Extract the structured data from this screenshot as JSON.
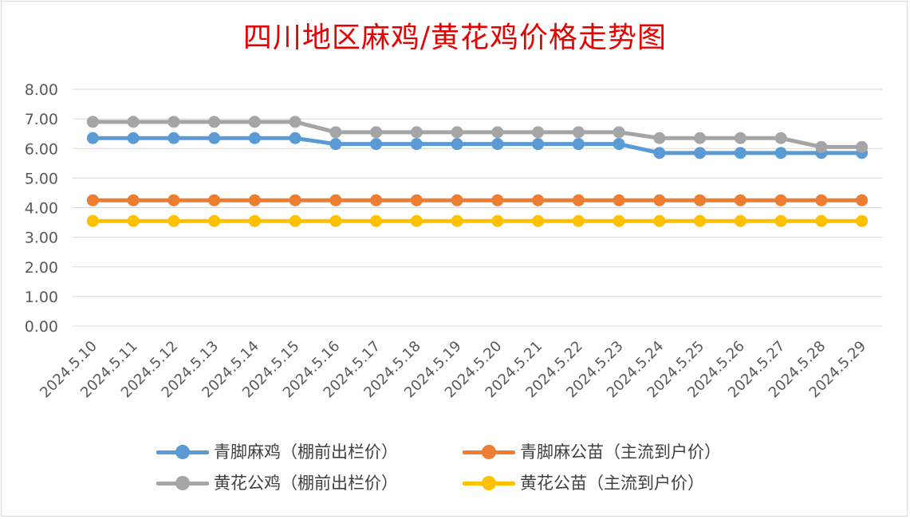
{
  "chart_data": {
    "type": "line",
    "title": "四川地区麻鸡/黄花鸡价格走势图",
    "categories": [
      "2024.5.10",
      "2024.5.11",
      "2024.5.12",
      "2024.5.13",
      "2024.5.14",
      "2024.5.15",
      "2024.5.16",
      "2024.5.17",
      "2024.5.18",
      "2024.5.19",
      "2024.5.20",
      "2024.5.21",
      "2024.5.22",
      "2024.5.23",
      "2024.5.24",
      "2024.5.25",
      "2024.5.26",
      "2024.5.27",
      "2024.5.28",
      "2024.5.29"
    ],
    "ylim": [
      0,
      8
    ],
    "yticks": [
      "0.00",
      "1.00",
      "2.00",
      "3.00",
      "4.00",
      "5.00",
      "6.00",
      "7.00",
      "8.00"
    ],
    "grid": true,
    "legend_position": "bottom",
    "series": [
      {
        "name": "青脚麻鸡（棚前出栏价）",
        "color": "#5b9bd5",
        "values": [
          6.35,
          6.35,
          6.35,
          6.35,
          6.35,
          6.35,
          6.15,
          6.15,
          6.15,
          6.15,
          6.15,
          6.15,
          6.15,
          6.15,
          5.85,
          5.85,
          5.85,
          5.85,
          5.85,
          5.85
        ]
      },
      {
        "name": "青脚麻公苗（主流到户价）",
        "color": "#ed7d31",
        "values": [
          4.25,
          4.25,
          4.25,
          4.25,
          4.25,
          4.25,
          4.25,
          4.25,
          4.25,
          4.25,
          4.25,
          4.25,
          4.25,
          4.25,
          4.25,
          4.25,
          4.25,
          4.25,
          4.25,
          4.25
        ]
      },
      {
        "name": "黄花公鸡（棚前出栏价）",
        "color": "#a5a5a5",
        "values": [
          6.9,
          6.9,
          6.9,
          6.9,
          6.9,
          6.9,
          6.55,
          6.55,
          6.55,
          6.55,
          6.55,
          6.55,
          6.55,
          6.55,
          6.35,
          6.35,
          6.35,
          6.35,
          6.05,
          6.05
        ]
      },
      {
        "name": "黄花公苗（主流到户价）",
        "color": "#ffc000",
        "values": [
          3.55,
          3.55,
          3.55,
          3.55,
          3.55,
          3.55,
          3.55,
          3.55,
          3.55,
          3.55,
          3.55,
          3.55,
          3.55,
          3.55,
          3.55,
          3.55,
          3.55,
          3.55,
          3.55,
          3.55
        ]
      }
    ]
  }
}
